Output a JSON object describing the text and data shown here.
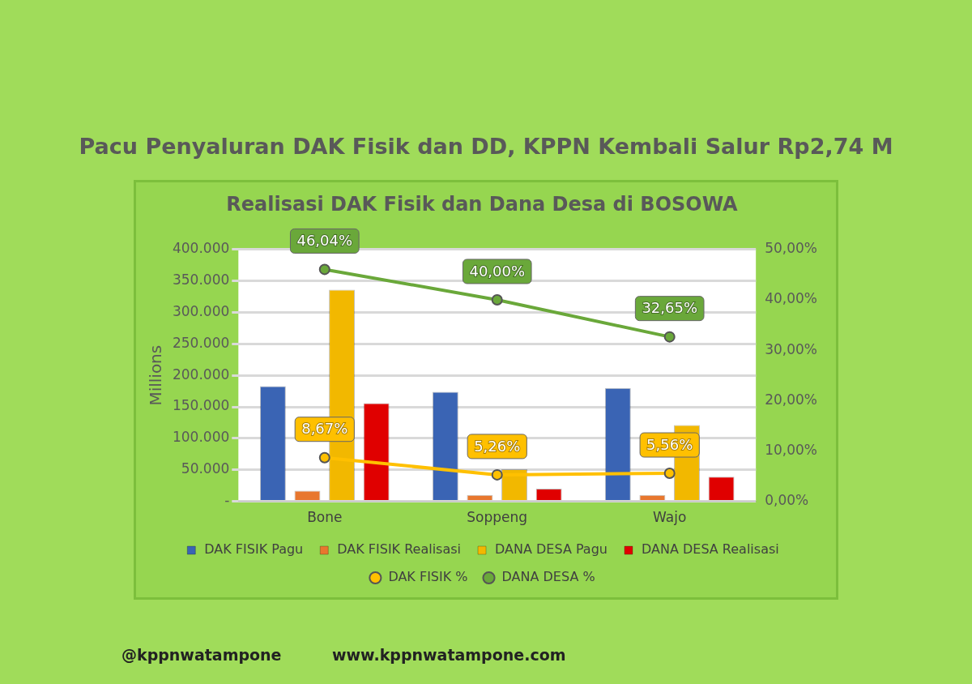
{
  "chart_data": {
    "type": "bar",
    "title": "Pacu Penyaluran DAK Fisik dan DD, KPPN Kembali Salur Rp2,74 M",
    "subtitle": "Realisasi DAK Fisik dan Dana Desa di BOSOWA",
    "ylabel": "Millions",
    "categories": [
      "Bone",
      "Soppeng",
      "Wajo"
    ],
    "series": [
      {
        "name": "DAK FISIK Pagu",
        "color": "#3a64b4",
        "values": [
          183000,
          174000,
          180000
        ]
      },
      {
        "name": "DAK FISIK Realisasi",
        "color": "#e8772e",
        "values": [
          17000,
          10000,
          10000
        ]
      },
      {
        "name": "DANA DESA Pagu",
        "color": "#f2b800",
        "values": [
          336000,
          51000,
          121000
        ]
      },
      {
        "name": "DANA DESA Realisasi",
        "color": "#e00000",
        "values": [
          156000,
          20000,
          39000
        ]
      },
      {
        "name": "DAK FISIK %",
        "type": "line",
        "axis": "y2",
        "color": "#ffc000",
        "values": [
          8.67,
          5.26,
          5.56
        ],
        "value_labels": [
          "8,67%",
          "5,26%",
          "5,56%"
        ]
      },
      {
        "name": "DANA DESA %",
        "type": "line",
        "axis": "y2",
        "color": "#6aa83a",
        "values": [
          46.04,
          40.0,
          32.65
        ],
        "value_labels": [
          "46,04%",
          "40,00%",
          "32,65%"
        ]
      }
    ],
    "ylim": [
      0,
      400000
    ],
    "yticks": [
      {
        "value": 0,
        "label": "-"
      },
      {
        "value": 50000,
        "label": "50.000"
      },
      {
        "value": 100000,
        "label": "100.000"
      },
      {
        "value": 150000,
        "label": "150.000"
      },
      {
        "value": 200000,
        "label": "200.000"
      },
      {
        "value": 250000,
        "label": "250.000"
      },
      {
        "value": 300000,
        "label": "300.000"
      },
      {
        "value": 350000,
        "label": "350.000"
      },
      {
        "value": 400000,
        "label": "400.000"
      }
    ],
    "y2lim": [
      0,
      50
    ],
    "y2ticks": [
      {
        "value": 0,
        "label": "0,00%"
      },
      {
        "value": 10,
        "label": "10,00%"
      },
      {
        "value": 20,
        "label": "20,00%"
      },
      {
        "value": 30,
        "label": "30,00%"
      },
      {
        "value": 40,
        "label": "40,00%"
      },
      {
        "value": 50,
        "label": "50,00%"
      }
    ],
    "grid": "y",
    "legend": "bottom",
    "marker": "circle",
    "annotations": [
      "@kppnwatampone",
      "www.kppnwatampone.com"
    ]
  }
}
